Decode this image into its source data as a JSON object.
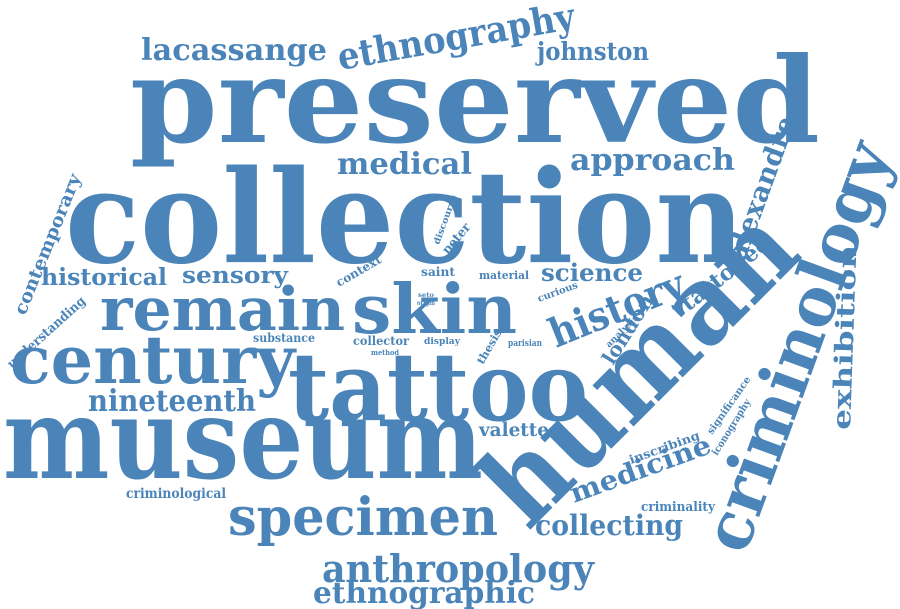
{
  "word_cloud": {
    "color": "#4a84b8",
    "words": [
      {
        "id": "preserved",
        "text": "preserved"
      },
      {
        "id": "collection",
        "text": "collection"
      },
      {
        "id": "museum",
        "text": "museum"
      },
      {
        "id": "tattoo",
        "text": "tattoo"
      },
      {
        "id": "human",
        "text": "human"
      },
      {
        "id": "criminology",
        "text": "criminology"
      },
      {
        "id": "remain",
        "text": "remain"
      },
      {
        "id": "skin",
        "text": "skin"
      },
      {
        "id": "century",
        "text": "century"
      },
      {
        "id": "specimen",
        "text": "specimen"
      },
      {
        "id": "anthropology",
        "text": "anthropology"
      },
      {
        "id": "ethnography",
        "text": "ethnography"
      },
      {
        "id": "ethnographic",
        "text": "ethnographic"
      },
      {
        "id": "history",
        "text": "history"
      },
      {
        "id": "nineteenth",
        "text": "nineteenth"
      },
      {
        "id": "lacassange",
        "text": "lacassange"
      },
      {
        "id": "johnston",
        "text": "johnston"
      },
      {
        "id": "medical",
        "text": "medical"
      },
      {
        "id": "approach",
        "text": "approach"
      },
      {
        "id": "alexandre",
        "text": "alexandre"
      },
      {
        "id": "tattooed",
        "text": "tattooed"
      },
      {
        "id": "exhibition",
        "text": "exhibition"
      },
      {
        "id": "medicine",
        "text": "medicine"
      },
      {
        "id": "collecting",
        "text": "collecting"
      },
      {
        "id": "science",
        "text": "science"
      },
      {
        "id": "london",
        "text": "london"
      },
      {
        "id": "historical",
        "text": "historical"
      },
      {
        "id": "sensory",
        "text": "sensory"
      },
      {
        "id": "contemporary",
        "text": "contemporary"
      },
      {
        "id": "valette",
        "text": "valette"
      },
      {
        "id": "understanding",
        "text": "understanding"
      },
      {
        "id": "criminological",
        "text": "criminological"
      },
      {
        "id": "criminality",
        "text": "criminality"
      },
      {
        "id": "inscribing",
        "text": "inscribing"
      },
      {
        "id": "significance",
        "text": "significance"
      },
      {
        "id": "iconography",
        "text": "iconography"
      },
      {
        "id": "peter",
        "text": "peter"
      },
      {
        "id": "discourse",
        "text": "discourse"
      },
      {
        "id": "context",
        "text": "context"
      },
      {
        "id": "saint",
        "text": "saint"
      },
      {
        "id": "material",
        "text": "material"
      },
      {
        "id": "curious",
        "text": "curious"
      },
      {
        "id": "analysis",
        "text": "analysis"
      },
      {
        "id": "thesis",
        "text": "thesis"
      },
      {
        "id": "parisian",
        "text": "parisian"
      },
      {
        "id": "substance",
        "text": "substance"
      },
      {
        "id": "collector",
        "text": "collector"
      },
      {
        "id": "display",
        "text": "display"
      },
      {
        "id": "method",
        "text": "method"
      },
      {
        "id": "seto",
        "text": "seto"
      },
      {
        "id": "origin",
        "text": "origin"
      }
    ]
  }
}
